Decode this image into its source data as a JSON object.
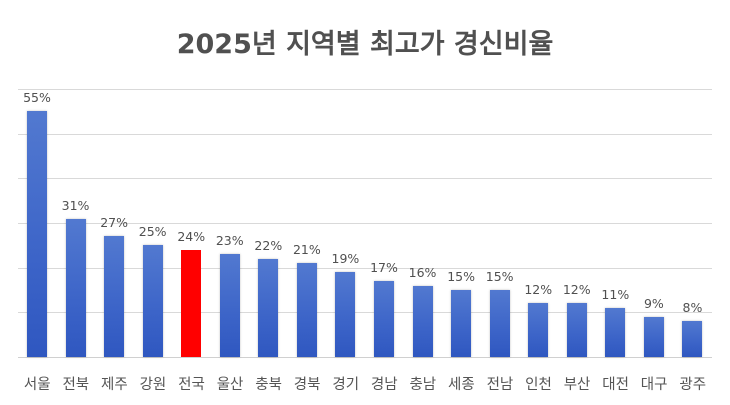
{
  "chart_data": {
    "type": "bar",
    "title": "2025년 지역별 최고가 경신비율",
    "xlabel": "",
    "ylabel": "",
    "ylim": [
      0,
      60
    ],
    "grid": true,
    "gridlines": [
      0,
      10,
      20,
      30,
      40,
      50,
      60
    ],
    "legend": null,
    "categories": [
      "서울",
      "전북",
      "제주",
      "강원",
      "전국",
      "울산",
      "충북",
      "경북",
      "경기",
      "경남",
      "충남",
      "세종",
      "전남",
      "인천",
      "부산",
      "대전",
      "대구",
      "광주"
    ],
    "values": [
      55,
      31,
      27,
      25,
      24,
      23,
      22,
      21,
      19,
      17,
      16,
      15,
      15,
      12,
      12,
      11,
      9,
      8
    ],
    "value_labels": [
      "55%",
      "31%",
      "27%",
      "25%",
      "24%",
      "23%",
      "22%",
      "21%",
      "19%",
      "17%",
      "16%",
      "15%",
      "15%",
      "12%",
      "12%",
      "11%",
      "9%",
      "8%"
    ],
    "highlight_category": "전국",
    "colors": {
      "bar": "#4472c4",
      "highlight": "#ff0000",
      "grid": "#d9d9d9",
      "text": "#505050"
    }
  }
}
